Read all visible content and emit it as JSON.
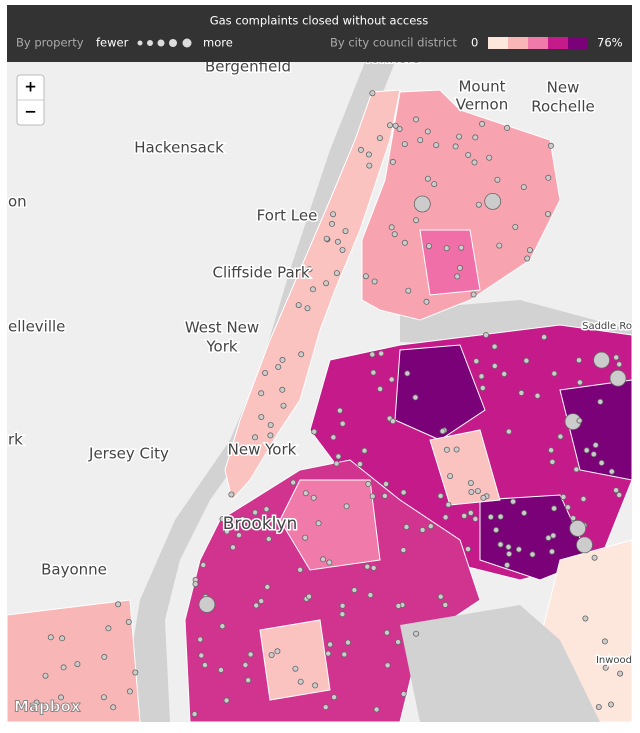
{
  "header": {
    "title": "Gas complaints closed without access",
    "property_label": "By property",
    "fewer": "fewer",
    "more": "more",
    "district_label": "By city council district",
    "scale_min": "0",
    "scale_max": "76%",
    "scale_colors": [
      "#fde6dc",
      "#f9b6b6",
      "#f07bab",
      "#c51b8a",
      "#7a0177"
    ]
  },
  "controls": {
    "zoom_in": "+",
    "zoom_out": "−"
  },
  "places": [
    "Bergenfield",
    "Yonkers",
    "Mount",
    "Vernon",
    "New",
    "Rochelle",
    "Hackensack",
    "on",
    "Fort Lee",
    "Cliffside Park",
    "elleville",
    "West New",
    "York",
    "New York",
    "rk",
    "Jersey City",
    "Brooklyn",
    "Bayonne",
    "Inwood",
    "Saddle Ro"
  ],
  "attribution": "Mapbox"
}
